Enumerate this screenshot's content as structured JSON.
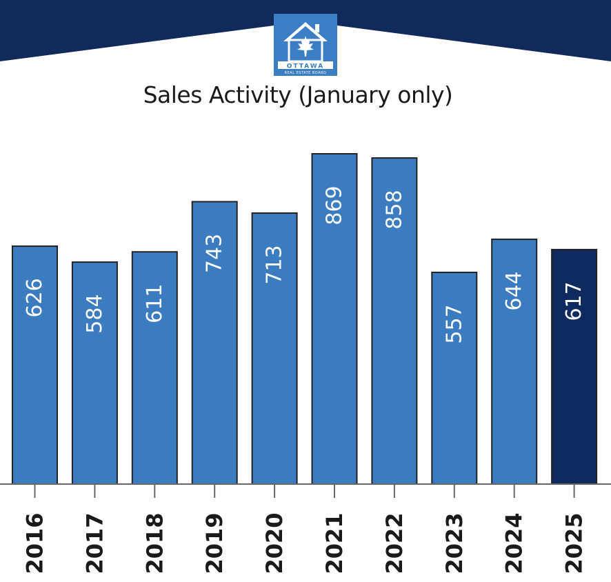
{
  "brand": {
    "logo_top": "OTTAWA",
    "logo_bottom": "REAL ESTATE BOARD",
    "banner_color": "#102a5c",
    "logo_color": "#3b7ec4"
  },
  "chart_data": {
    "type": "bar",
    "title": "Sales Activity (January only)",
    "xlabel": "",
    "ylabel": "",
    "categories": [
      "2016",
      "2017",
      "2018",
      "2019",
      "2020",
      "2021",
      "2022",
      "2023",
      "2024",
      "2025"
    ],
    "values": [
      626,
      584,
      611,
      743,
      713,
      869,
      858,
      557,
      644,
      617
    ],
    "ylim": [
      0,
      900
    ],
    "grid": false,
    "bar_color": "#3b7bc0",
    "highlight_color": "#0f2a5e",
    "highlight_index": 9
  }
}
